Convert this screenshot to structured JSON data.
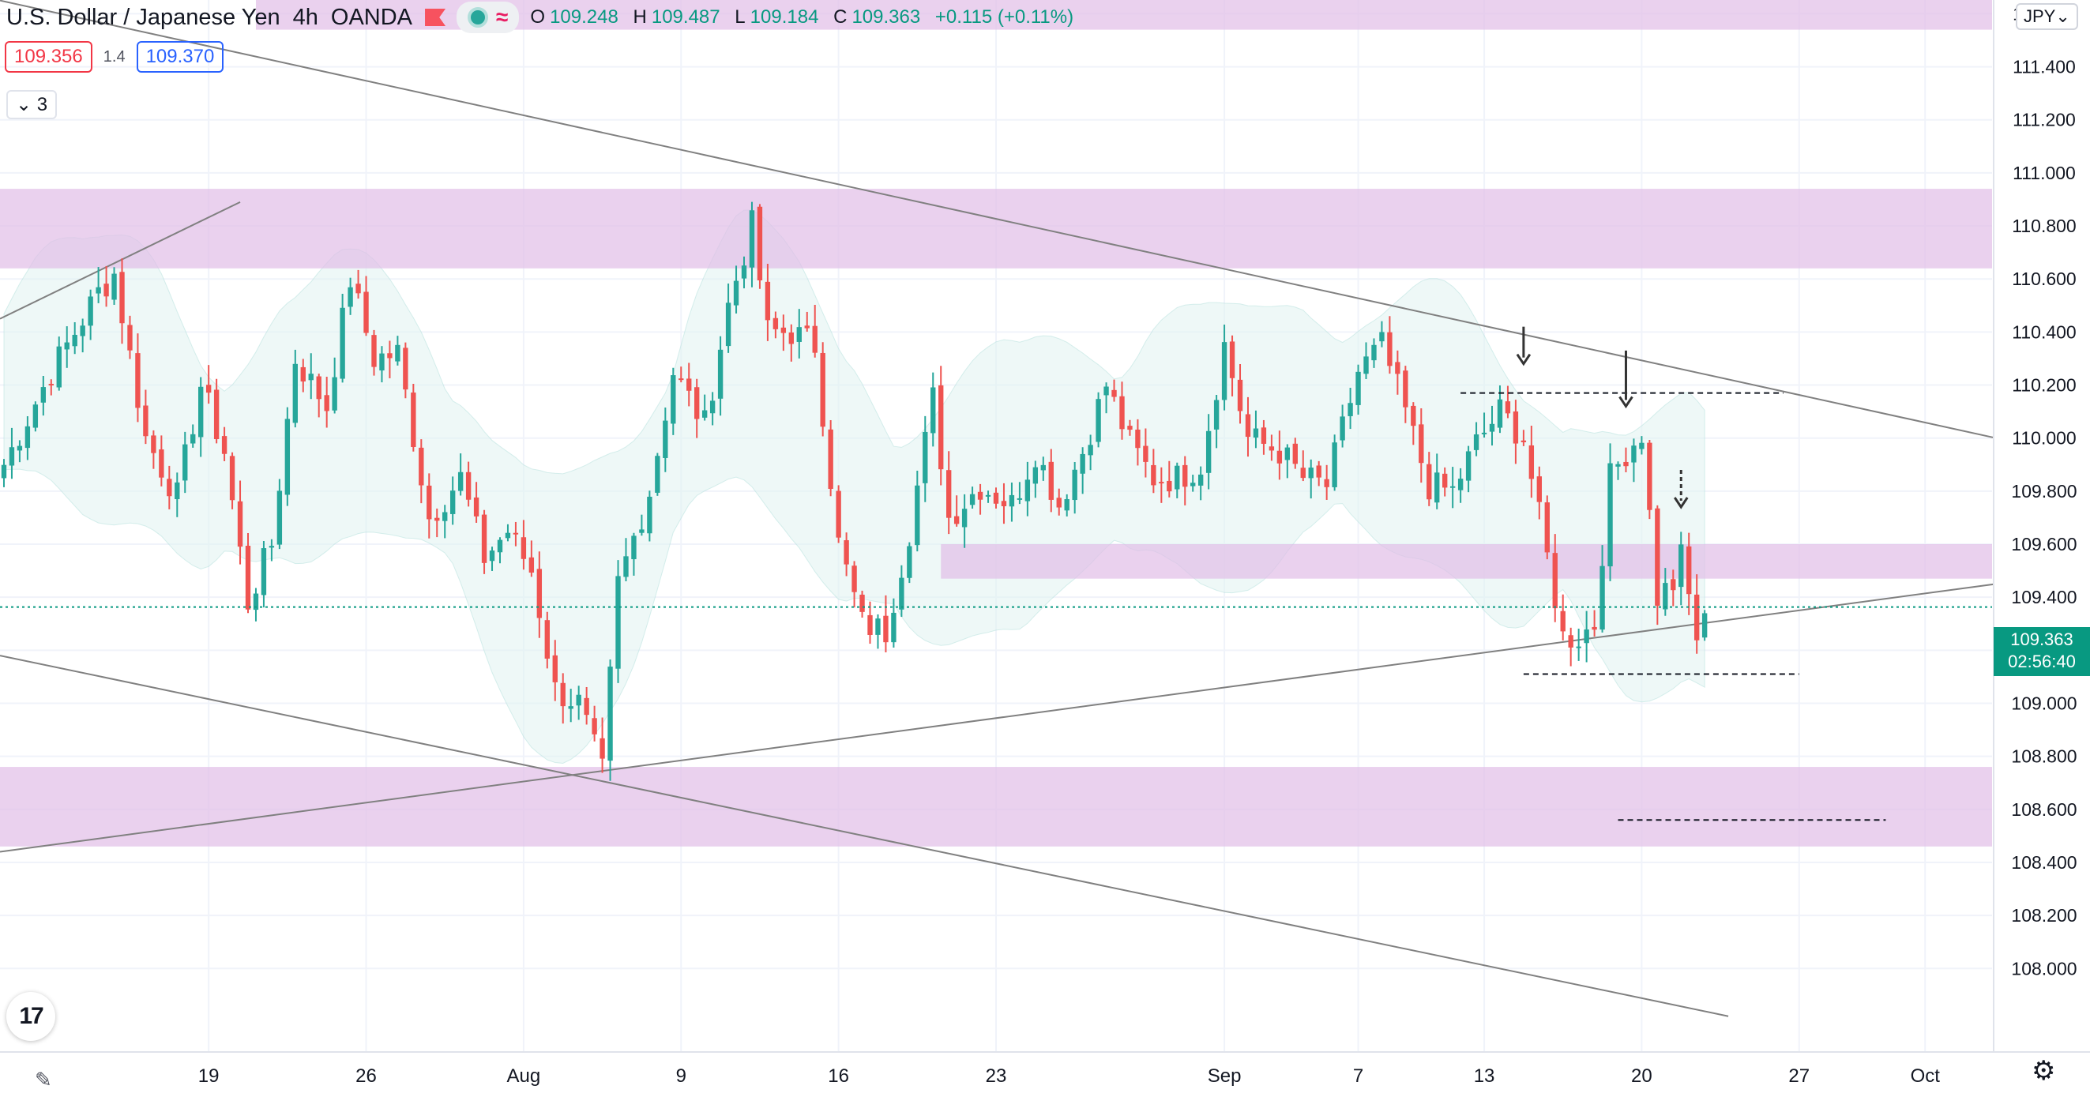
{
  "header": {
    "symbol": "U.S. Dollar / Japanese Yen",
    "interval": "4h",
    "broker": "OANDA",
    "ohlc": {
      "o_label": "O",
      "o": "109.248",
      "h_label": "H",
      "h": "109.487",
      "l_label": "L",
      "l": "109.184",
      "c_label": "C",
      "c": "109.363",
      "change": "+0.115 (+0.11%)"
    }
  },
  "quote": {
    "sell": "109.356",
    "spread": "1.4",
    "buy": "109.370"
  },
  "indicators": {
    "toggle_label": "3"
  },
  "currency_button": "JPY",
  "last_price": {
    "price": "109.363",
    "countdown": "02:56:40"
  },
  "icons": {
    "flag": "red-flag-icon",
    "logo": "tradingview-logo-icon",
    "settings": "gear-icon",
    "draw": "pencil-icon"
  },
  "logo_text": "17",
  "colors": {
    "up": "#26a69a",
    "down": "#ef5350",
    "zone": "#e1bee7",
    "band": "#e0f2f1",
    "line": "#808080",
    "price_line": "#089981"
  },
  "chart_data": {
    "type": "candlestick",
    "title": "U.S. Dollar / Japanese Yen · 4h · OANDA",
    "ylim": [
      107.84,
      111.64
    ],
    "y_ticks": [
      "108.000",
      "108.200",
      "108.400",
      "108.600",
      "108.800",
      "109.000",
      "109.200",
      "109.400",
      "109.600",
      "109.800",
      "110.000",
      "110.200",
      "110.400",
      "110.600",
      "110.800",
      "111.000",
      "111.200",
      "111.400",
      "111.600"
    ],
    "x_ticks": [
      {
        "label": "19",
        "i": 26
      },
      {
        "label": "26",
        "i": 46
      },
      {
        "label": "Aug",
        "i": 66
      },
      {
        "label": "9",
        "i": 86
      },
      {
        "label": "16",
        "i": 106
      },
      {
        "label": "23",
        "i": 126
      },
      {
        "label": "Sep",
        "i": 155
      },
      {
        "label": "7",
        "i": 172
      },
      {
        "label": "13",
        "i": 188
      },
      {
        "label": "20",
        "i": 208
      },
      {
        "label": "27",
        "i": 228
      },
      {
        "label": "Oct",
        "i": 244
      }
    ],
    "x_count": 253,
    "last_price": 109.363,
    "zones": [
      {
        "y1": 111.54,
        "y2": 111.76,
        "i1": 32,
        "i2": 253
      },
      {
        "y1": 110.64,
        "y2": 110.94,
        "i1": 0,
        "i2": 253
      },
      {
        "y1": 109.47,
        "y2": 109.6,
        "i1": 119,
        "i2": 253
      },
      {
        "y1": 108.46,
        "y2": 108.76,
        "i1": 0,
        "i2": 253
      }
    ],
    "trendlines": [
      {
        "x1": 0,
        "y1": 111.65,
        "x2": 253,
        "y2": 110.0
      },
      {
        "x1": 0,
        "y1": 108.44,
        "x2": 253,
        "y2": 109.45
      },
      {
        "x1": 0,
        "y1": 109.18,
        "x2": 219,
        "y2": 107.82
      },
      {
        "x1": 0,
        "y1": 110.45,
        "x2": 30,
        "y2": 110.89
      }
    ],
    "dashed_levels": [
      {
        "y": 110.17,
        "i1": 185,
        "i2": 226
      },
      {
        "y": 109.11,
        "i1": 193,
        "i2": 228
      },
      {
        "y": 108.56,
        "i1": 205,
        "i2": 239
      }
    ],
    "arrows": [
      {
        "i": 193,
        "y_from": 110.42,
        "y_to": 110.28,
        "dashed": false
      },
      {
        "i": 206,
        "y_from": 110.33,
        "y_to": 110.12,
        "dashed": false
      },
      {
        "i": 213,
        "y_from": 109.88,
        "y_to": 109.74,
        "dashed": true
      }
    ],
    "waypoints": [
      [
        0,
        109.9
      ],
      [
        6,
        110.25
      ],
      [
        12,
        110.55
      ],
      [
        14,
        110.62
      ],
      [
        18,
        110.0
      ],
      [
        22,
        109.78
      ],
      [
        25,
        110.2
      ],
      [
        28,
        109.95
      ],
      [
        31,
        109.38
      ],
      [
        34,
        109.6
      ],
      [
        37,
        110.3
      ],
      [
        41,
        110.12
      ],
      [
        44,
        110.6
      ],
      [
        47,
        110.3
      ],
      [
        50,
        110.32
      ],
      [
        54,
        109.7
      ],
      [
        58,
        109.85
      ],
      [
        61,
        109.55
      ],
      [
        64,
        109.65
      ],
      [
        67,
        109.5
      ],
      [
        70,
        109.05
      ],
      [
        73,
        109.0
      ],
      [
        76,
        108.74
      ],
      [
        78,
        109.45
      ],
      [
        82,
        109.8
      ],
      [
        85,
        110.25
      ],
      [
        89,
        110.05
      ],
      [
        92,
        110.5
      ],
      [
        95,
        110.8
      ],
      [
        97,
        110.4
      ],
      [
        100,
        110.4
      ],
      [
        103,
        110.35
      ],
      [
        106,
        109.6
      ],
      [
        109,
        109.3
      ],
      [
        112,
        109.27
      ],
      [
        115,
        109.65
      ],
      [
        118,
        110.15
      ],
      [
        120,
        109.7
      ],
      [
        124,
        109.82
      ],
      [
        128,
        109.75
      ],
      [
        131,
        109.95
      ],
      [
        134,
        109.75
      ],
      [
        137,
        109.95
      ],
      [
        140,
        110.2
      ],
      [
        143,
        109.98
      ],
      [
        146,
        109.85
      ],
      [
        149,
        109.85
      ],
      [
        152,
        109.9
      ],
      [
        155,
        110.35
      ],
      [
        158,
        110.0
      ],
      [
        162,
        109.95
      ],
      [
        165,
        109.85
      ],
      [
        168,
        109.82
      ],
      [
        172,
        110.25
      ],
      [
        175,
        110.35
      ],
      [
        178,
        110.1
      ],
      [
        181,
        109.82
      ],
      [
        184,
        109.8
      ],
      [
        187,
        109.98
      ],
      [
        190,
        110.1
      ],
      [
        193,
        110.0
      ],
      [
        196,
        109.55
      ],
      [
        198,
        109.25
      ],
      [
        200,
        109.25
      ],
      [
        202,
        109.3
      ],
      [
        204,
        109.85
      ],
      [
        206,
        109.95
      ],
      [
        208,
        110.02
      ],
      [
        210,
        109.4
      ],
      [
        212,
        109.45
      ],
      [
        213,
        109.55
      ],
      [
        215,
        109.25
      ],
      [
        216,
        109.3
      ]
    ],
    "band_spread": 0.42,
    "series": [
      {
        "name": "USDJPY"
      }
    ]
  }
}
